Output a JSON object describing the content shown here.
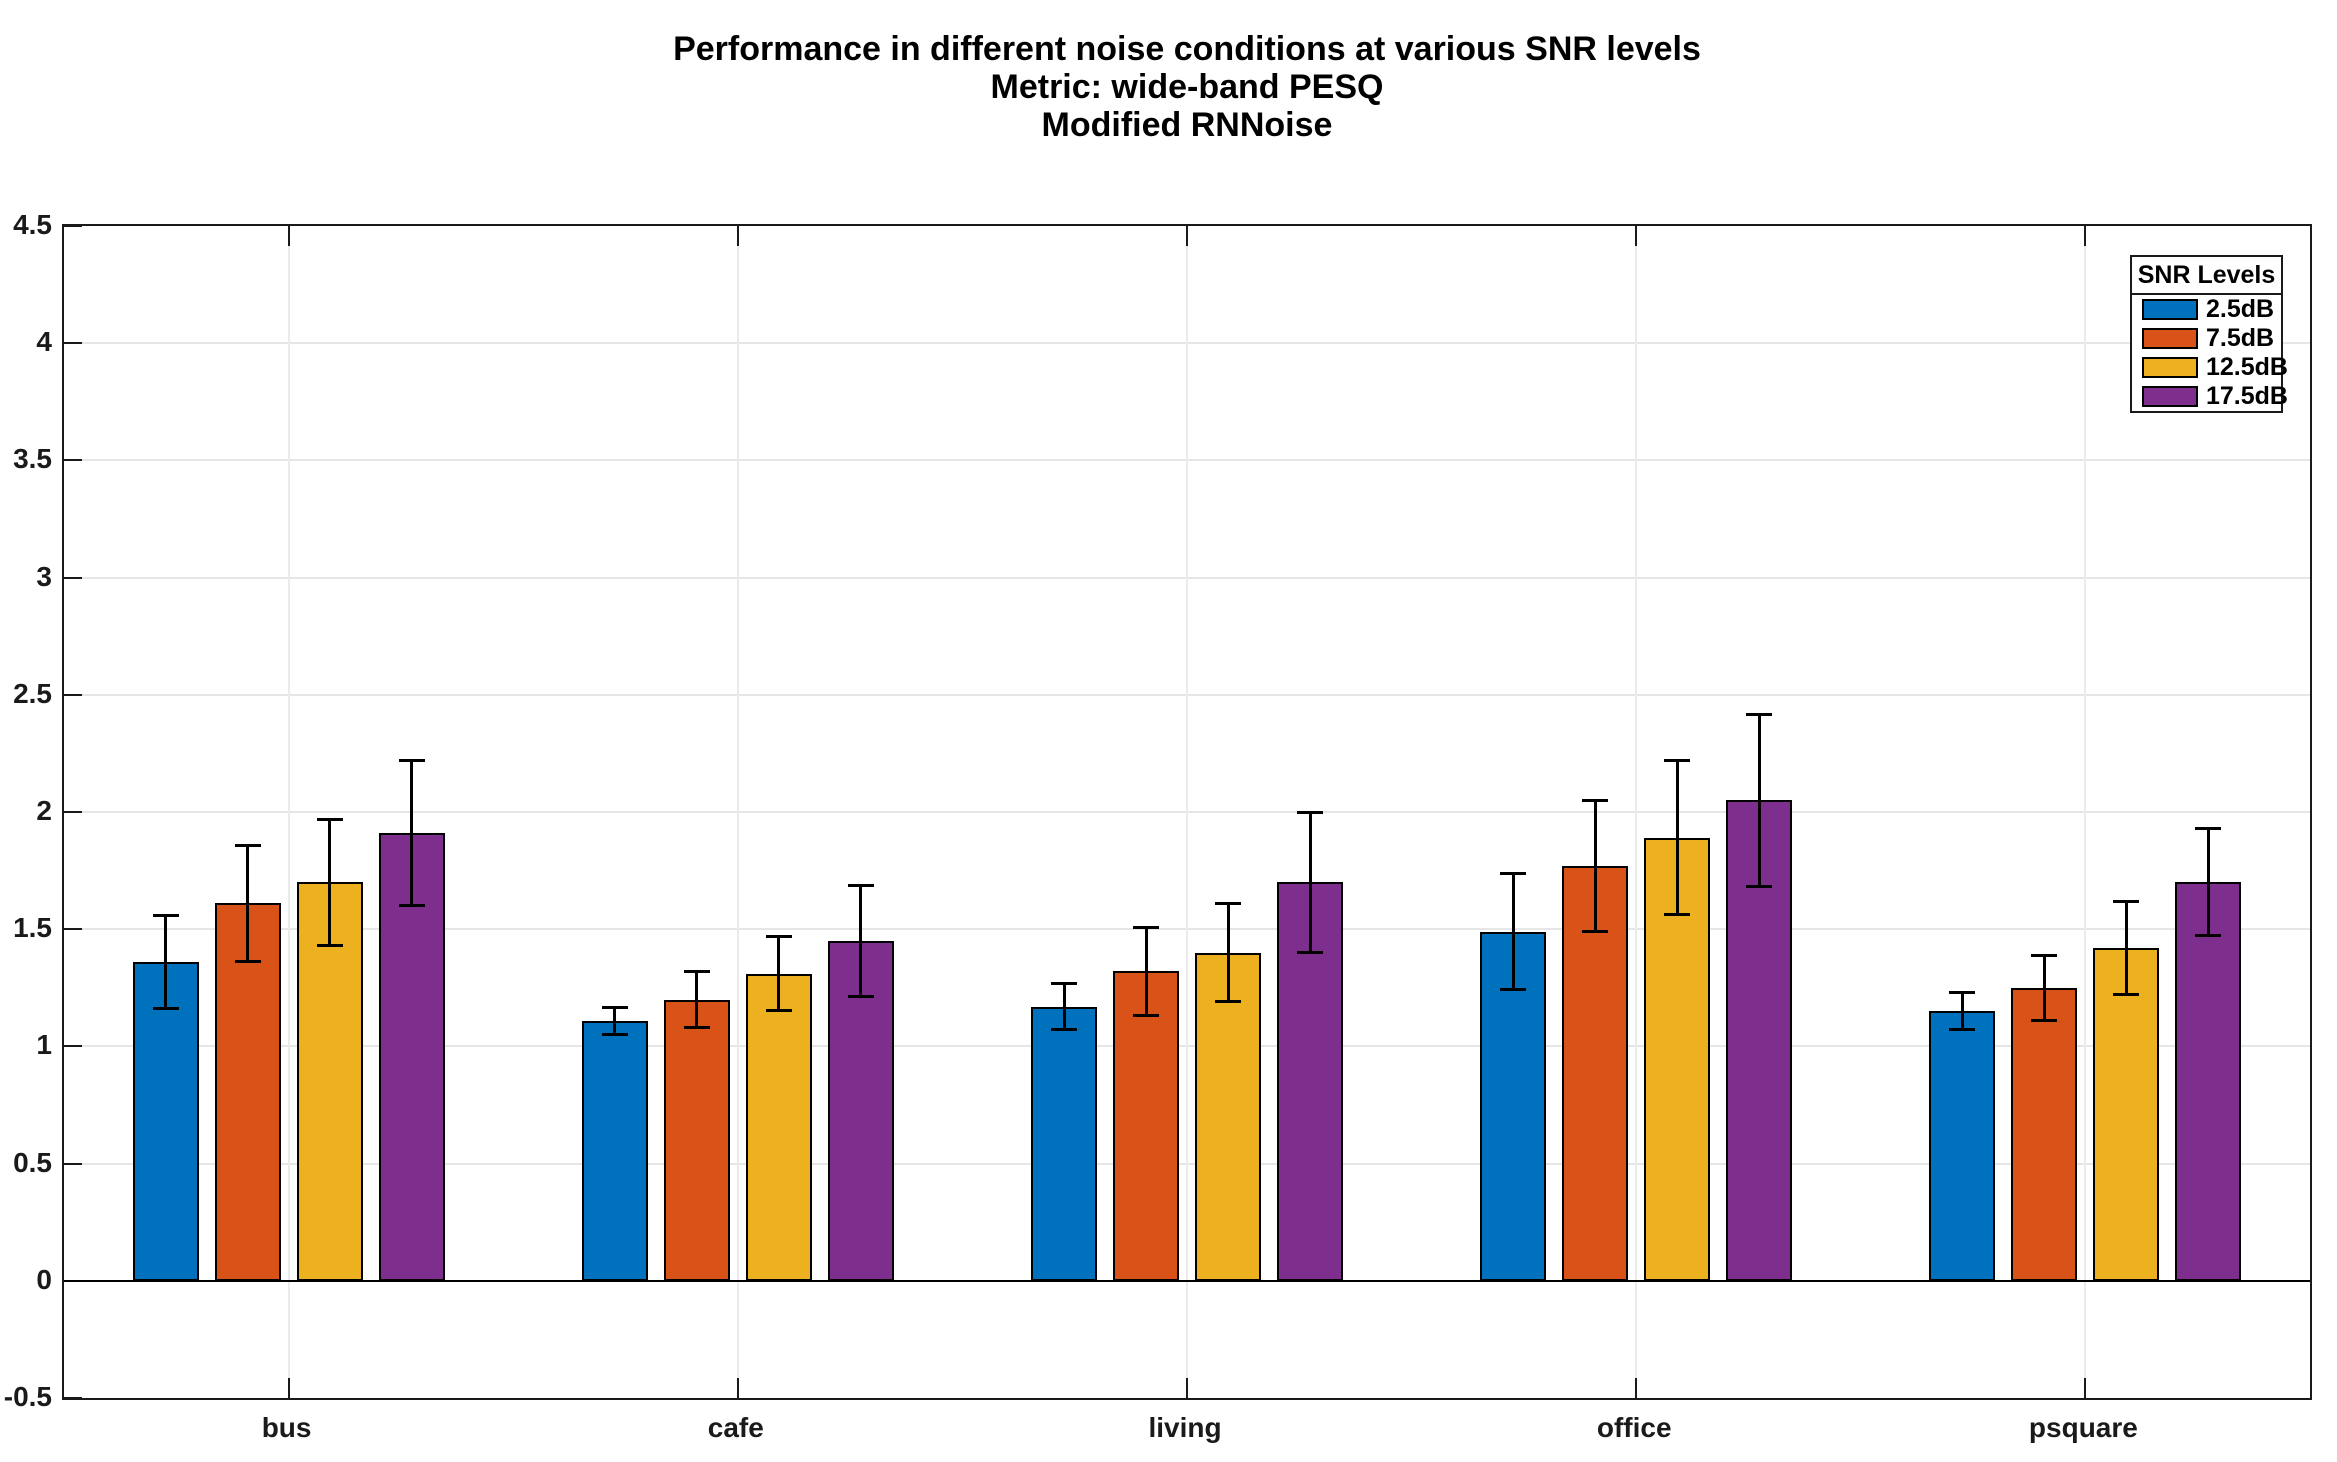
{
  "title": {
    "line1": "Performance in different noise conditions at various SNR levels",
    "line2": "Metric: wide-band PESQ",
    "line3": "Modified RNNoise"
  },
  "legend": {
    "title": "SNR Levels",
    "entries": [
      "2.5dB",
      "7.5dB",
      "12.5dB",
      "17.5dB"
    ]
  },
  "colors": {
    "series_blue": "#0072BD",
    "series_orange": "#D95319",
    "series_yellow": "#EDB120",
    "series_purple": "#7E2F8E",
    "bar_edge": "#000000",
    "axis": "#1a1a1a",
    "grid": "#e6e6e6",
    "background": "#ffffff"
  },
  "chart_data": {
    "type": "bar",
    "title": "Performance in different noise conditions at various SNR levels",
    "subtitle1": "Metric: wide-band PESQ",
    "subtitle2": "Modified RNNoise",
    "categories": [
      "bus",
      "cafe",
      "living",
      "office",
      "psquare"
    ],
    "series": [
      {
        "name": "2.5dB",
        "color": "#0072BD",
        "values": [
          1.36,
          1.11,
          1.17,
          1.49,
          1.15
        ],
        "errors": [
          0.2,
          0.06,
          0.1,
          0.25,
          0.08
        ]
      },
      {
        "name": "7.5dB",
        "color": "#D95319",
        "values": [
          1.61,
          1.2,
          1.32,
          1.77,
          1.25
        ],
        "errors": [
          0.25,
          0.12,
          0.19,
          0.28,
          0.14
        ]
      },
      {
        "name": "12.5dB",
        "color": "#EDB120",
        "values": [
          1.7,
          1.31,
          1.4,
          1.89,
          1.42
        ],
        "errors": [
          0.27,
          0.16,
          0.21,
          0.33,
          0.2
        ]
      },
      {
        "name": "17.5dB",
        "color": "#7E2F8E",
        "values": [
          1.91,
          1.45,
          1.7,
          2.05,
          1.7
        ],
        "errors": [
          0.31,
          0.24,
          0.3,
          0.37,
          0.23
        ]
      }
    ],
    "xlabel": "",
    "ylabel": "",
    "ylim": [
      -0.5,
      4.5
    ],
    "ytick_step": 0.5,
    "ytick_labels": [
      "-0.5",
      "0",
      "0.5",
      "1",
      "1.5",
      "2",
      "2.5",
      "3",
      "3.5",
      "4",
      "4.5"
    ],
    "baseline": 0,
    "grid": true,
    "legend_position": "top-right",
    "legend_title": "SNR Levels"
  }
}
